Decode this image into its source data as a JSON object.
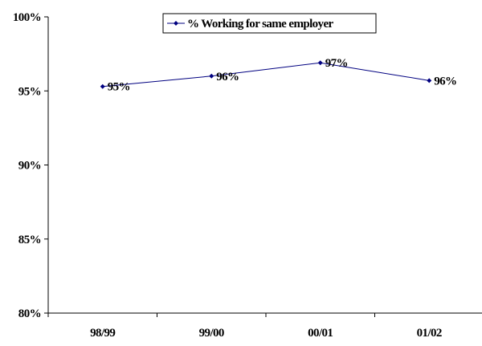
{
  "chart_data": {
    "type": "line",
    "categories": [
      "98/99",
      "99/00",
      "00/01",
      "01/02"
    ],
    "series": [
      {
        "name": "% Working for same employer",
        "values": [
          95.3,
          96.0,
          96.9,
          95.7
        ],
        "labels": [
          "95%",
          "96%",
          "97%",
          "96%"
        ]
      }
    ],
    "ylim": [
      80,
      100
    ],
    "yticks": [
      {
        "value": 80,
        "label": "80%"
      },
      {
        "value": 85,
        "label": "85%"
      },
      {
        "value": 90,
        "label": "90%"
      },
      {
        "value": 95,
        "label": "95%"
      },
      {
        "value": 100,
        "label": "100%"
      }
    ],
    "grid": false,
    "legend_position": "top-center",
    "colors": {
      "series": "#000080",
      "axis": "#000000"
    }
  }
}
